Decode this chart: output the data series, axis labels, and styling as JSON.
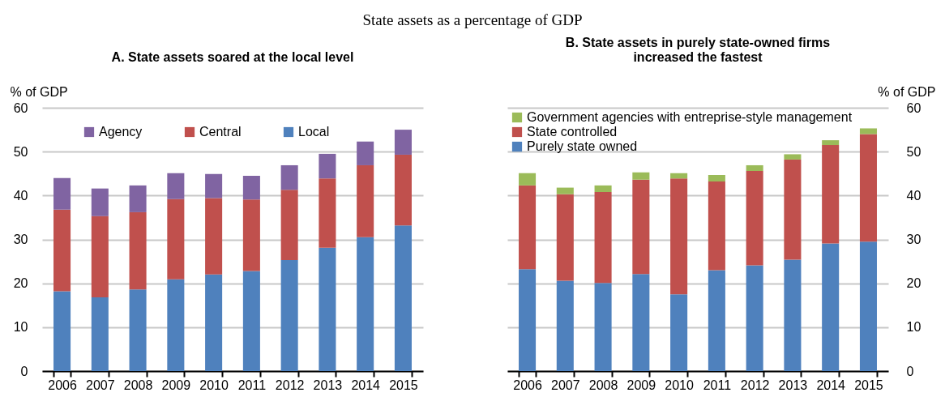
{
  "chart_data": [
    {
      "type": "bar",
      "title": "A. State assets soared at the local level",
      "annotations": [
        "State assets as a percentage of GDP"
      ],
      "ylabel": "% of GDP",
      "categories": [
        "2006",
        "2007",
        "2008",
        "2009",
        "2010",
        "2011",
        "2012",
        "2013",
        "2014",
        "2015"
      ],
      "stacked": true,
      "ylim": [
        0,
        60
      ],
      "yticks": [
        0,
        10,
        20,
        30,
        40,
        50,
        60
      ],
      "grid": "y",
      "legend": "top",
      "series": [
        {
          "name": "Local",
          "color": "#4f81bd",
          "values": [
            18.2,
            16.8,
            18.6,
            20.9,
            22.0,
            22.8,
            25.3,
            28.1,
            30.5,
            33.2
          ]
        },
        {
          "name": "Central",
          "color": "#c0504d",
          "values": [
            18.6,
            18.5,
            17.6,
            18.3,
            17.4,
            16.3,
            16.0,
            15.8,
            16.4,
            16.1
          ]
        },
        {
          "name": "Agency",
          "color": "#8064a2",
          "values": [
            7.2,
            6.3,
            6.1,
            5.9,
            5.5,
            5.4,
            5.6,
            5.6,
            5.4,
            5.7
          ]
        }
      ]
    },
    {
      "type": "bar",
      "title": "B. State assets in purely state-owned firms\nincreased the fastest",
      "y2label": "% of GDP",
      "categories": [
        "2006",
        "2007",
        "2008",
        "2009",
        "2010",
        "2011",
        "2012",
        "2013",
        "2014",
        "2015"
      ],
      "stacked": true,
      "y2lim": [
        0,
        60
      ],
      "y2ticks": [
        0,
        10,
        20,
        30,
        40,
        50,
        60
      ],
      "grid": "y",
      "legend": "top left",
      "series": [
        {
          "name": "Purely state owned",
          "color": "#4f81bd",
          "axis": "y2",
          "values": [
            23.2,
            20.6,
            20.1,
            22.1,
            17.5,
            23.0,
            24.1,
            25.4,
            29.1,
            29.5
          ]
        },
        {
          "name": "State controlled",
          "color": "#c0504d",
          "axis": "y2",
          "values": [
            19.1,
            19.7,
            20.7,
            21.5,
            26.4,
            20.2,
            21.5,
            22.8,
            22.4,
            24.5
          ]
        },
        {
          "name": "Government agencies with entreprise-style management",
          "color": "#9bbb59",
          "axis": "y2",
          "values": [
            2.8,
            1.5,
            1.5,
            1.7,
            1.2,
            1.5,
            1.3,
            1.2,
            1.1,
            1.3
          ]
        }
      ]
    }
  ]
}
